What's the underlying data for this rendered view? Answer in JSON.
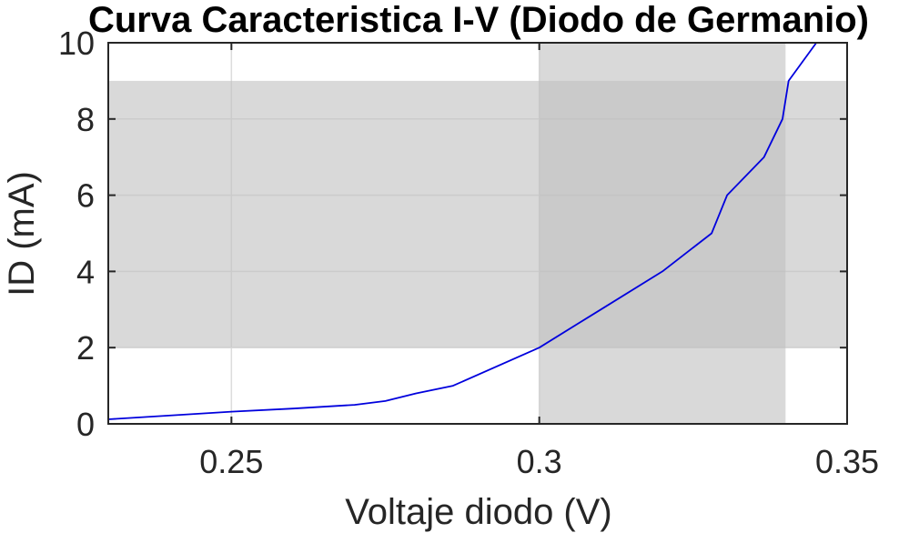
{
  "chart_data": {
    "type": "line",
    "title": "Curva Caracteristica I-V (Diodo de Germanio)",
    "xlabel": "Voltaje diodo (V)",
    "ylabel": "ID (mA)",
    "xlim": [
      0.23,
      0.35
    ],
    "ylim": [
      0,
      10
    ],
    "x_ticks": [
      0.25,
      0.3,
      0.35
    ],
    "x_tick_labels": [
      "0.25",
      "0.3",
      "0.35"
    ],
    "y_ticks": [
      0,
      2,
      4,
      6,
      8,
      10
    ],
    "y_tick_labels": [
      "0",
      "2",
      "4",
      "6",
      "8",
      "10"
    ],
    "grid": true,
    "legend": "none",
    "shaded_regions": [
      {
        "x_range": [
          0.23,
          0.35
        ],
        "y_range": [
          2,
          9
        ],
        "color": "#c0c0c0",
        "opacity": 0.6
      },
      {
        "x_range": [
          0.3,
          0.34
        ],
        "y_range": [
          0,
          10
        ],
        "color": "#c0c0c0",
        "opacity": 0.6
      }
    ],
    "series": [
      {
        "color": "#0000dd",
        "x": [
          0.23,
          0.25,
          0.26,
          0.27,
          0.275,
          0.28,
          0.286,
          0.3,
          0.31,
          0.32,
          0.328,
          0.3305,
          0.3365,
          0.3395,
          0.3405,
          0.345
        ],
        "y": [
          0.12,
          0.32,
          0.4,
          0.5,
          0.6,
          0.8,
          1.0,
          2.0,
          3.0,
          4.0,
          5.0,
          6.0,
          7.0,
          8.0,
          9.0,
          10.0
        ]
      }
    ]
  }
}
